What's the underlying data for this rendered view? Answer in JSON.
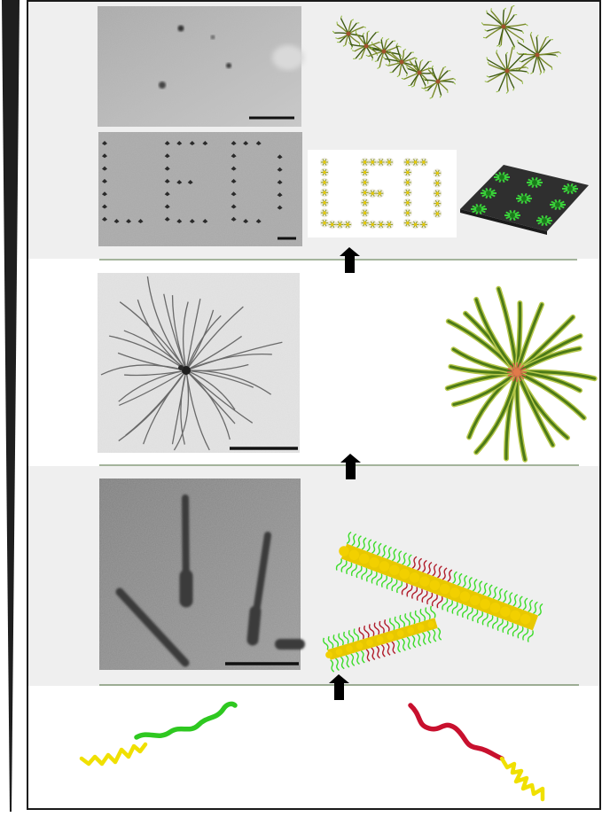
{
  "figure": {
    "panels": [
      "micrograph-row-clusters",
      "micrograph-row-pattern",
      "micrograph-star-micelle",
      "micrograph-rod-micelles",
      "polymer-chains"
    ],
    "colors": {
      "panel_gray": "#efefef",
      "frame": "#1a1a1a",
      "core_yellow": "#e8c800",
      "corona_green": "#3cdc2a",
      "corona_red": "#b01c2a",
      "arm_olive": "#7a8a2a",
      "arm_dark": "#3e5a12",
      "rule_green": "#4a6a3a",
      "arrow": "#000000"
    },
    "icons": [
      "up-arrow-icon",
      "up-arrow-icon",
      "up-arrow-icon"
    ]
  }
}
